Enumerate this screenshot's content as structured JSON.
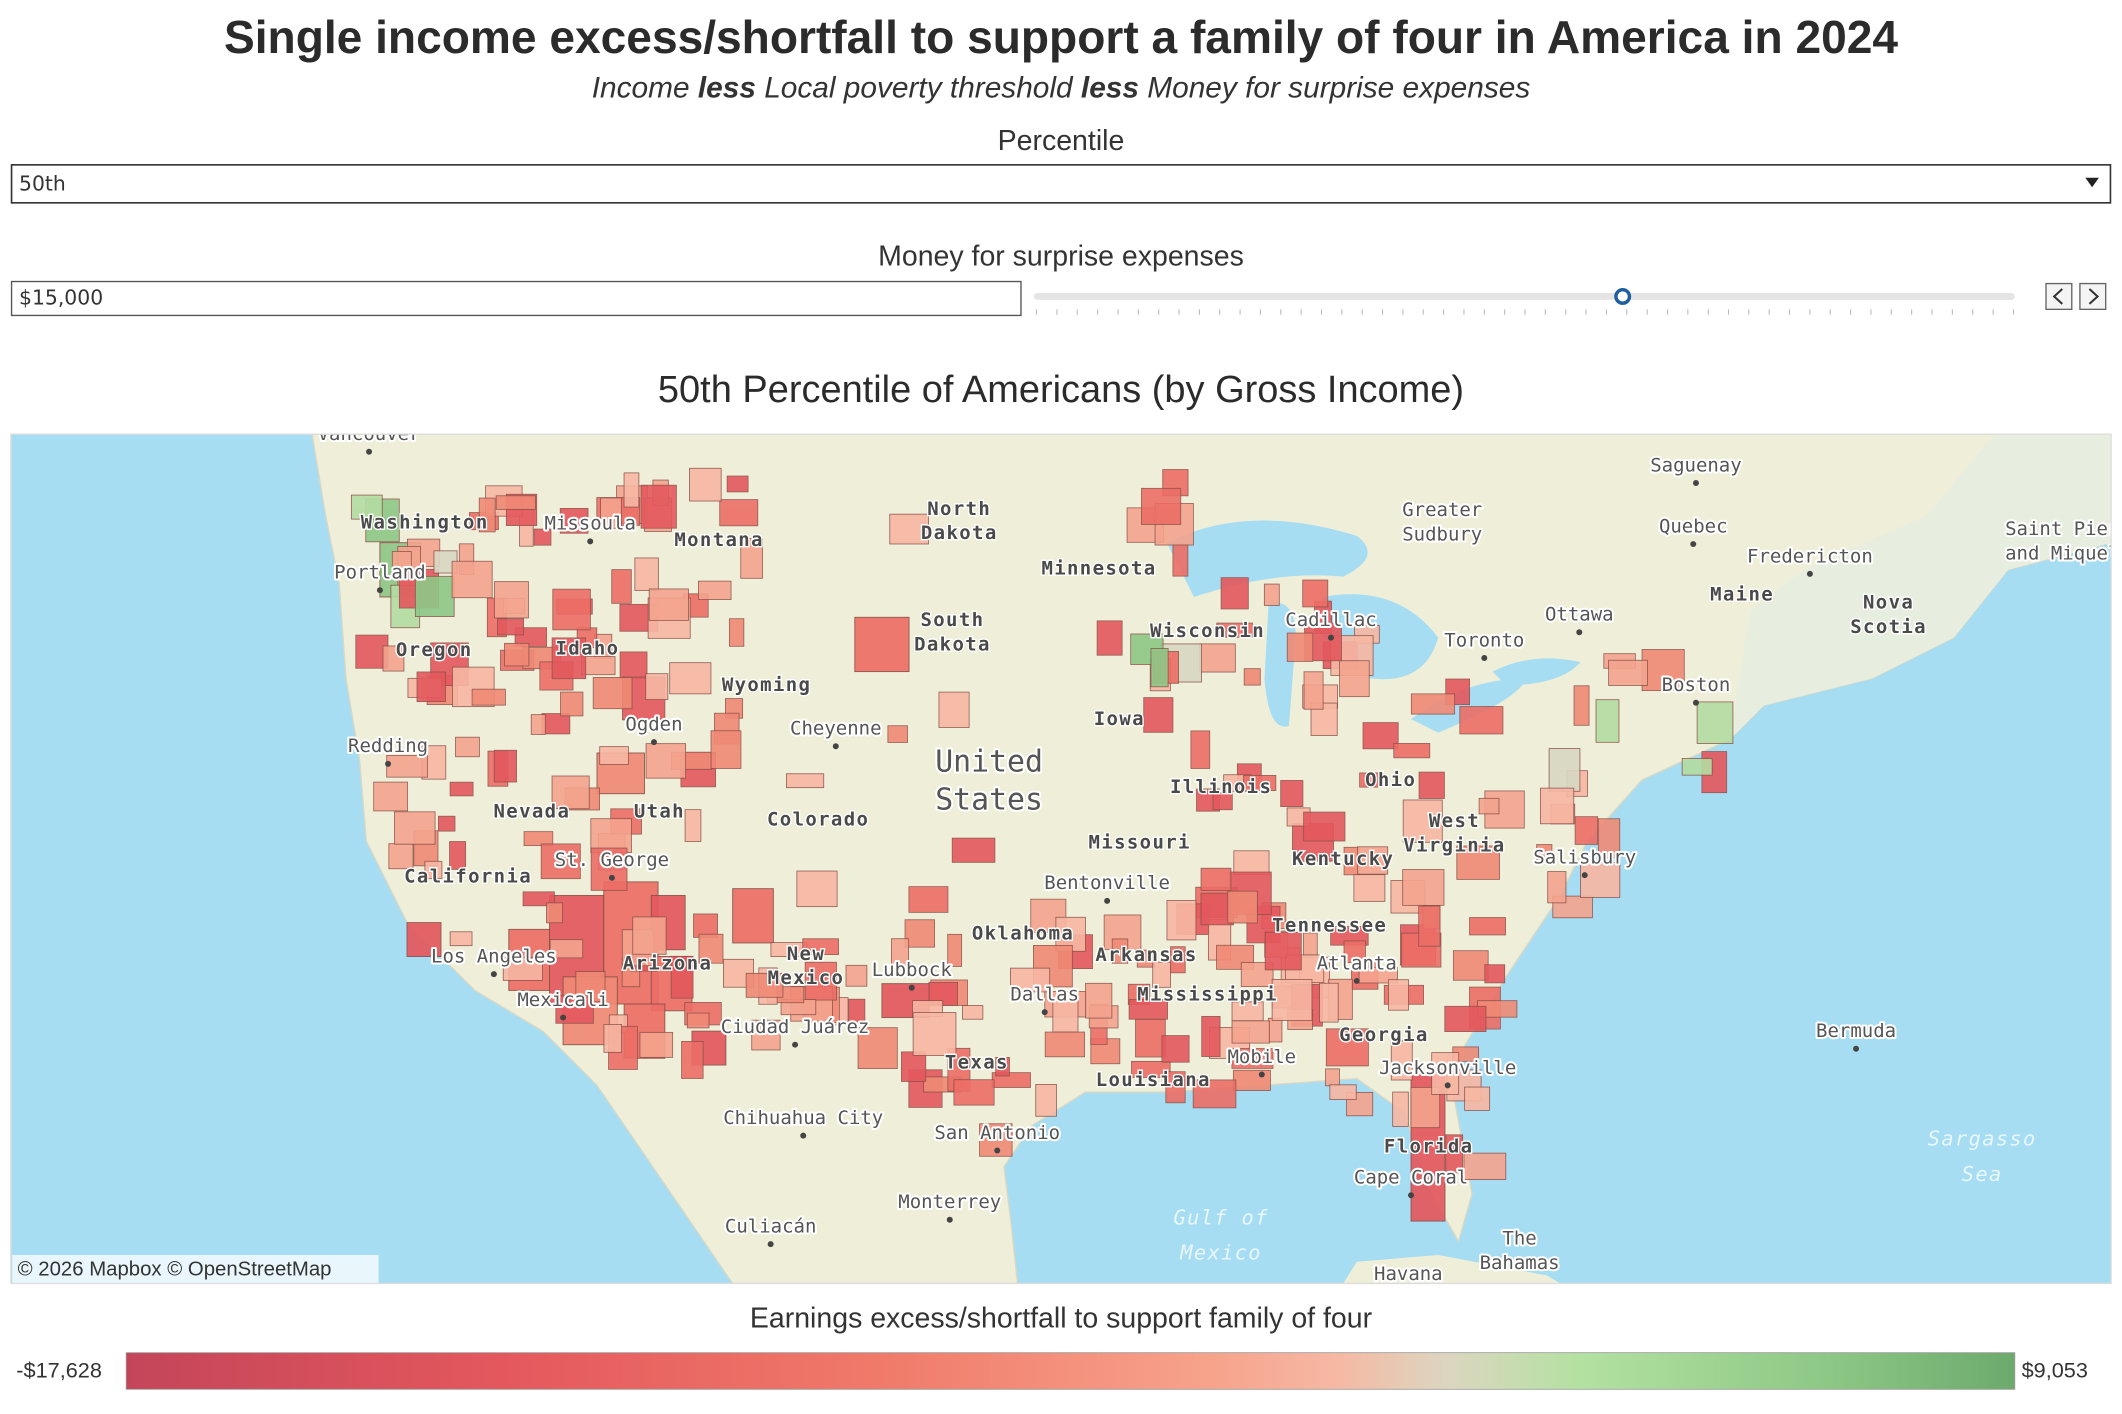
{
  "header": {
    "title": "Single income excess/shortfall to support a family of four in America in 2024",
    "subtitle": [
      "Income",
      "less",
      "Local poverty threshold",
      "less",
      "Money for surprise expenses"
    ]
  },
  "controls": {
    "percentile_label": "Percentile",
    "percentile_value": "50th",
    "money_label": "Money for surprise expenses",
    "money_value": "$15,000"
  },
  "map": {
    "title": "50th Percentile of Americans (by Gross Income)",
    "labels": [
      [
        "Vancouver"
      ],
      [
        "Washington"
      ],
      [
        "Missoula"
      ],
      [
        "Montana"
      ],
      [
        "North",
        "Dakota"
      ],
      [
        "Saguenay"
      ],
      [
        "Greater",
        "Sudbury"
      ],
      [
        "Quebec"
      ],
      [
        "Saint Pier",
        "and Miquel"
      ],
      [
        "Fredericton"
      ],
      [
        "Portland"
      ],
      [
        "Minnesota"
      ],
      [
        "Maine"
      ],
      [
        "Nova",
        "Scotia"
      ],
      [
        "Ottawa"
      ],
      [
        "South",
        "Dakota"
      ],
      [
        "Cadillac"
      ],
      [
        "Wisconsin"
      ],
      [
        "Toronto"
      ],
      [
        "Oregon"
      ],
      [
        "Idaho"
      ],
      [
        "Wyoming"
      ],
      [
        "Boston"
      ],
      [
        "Iowa"
      ],
      [
        "Ogden"
      ],
      [
        "Cheyenne"
      ],
      [
        "Redding"
      ],
      [
        "United",
        "States"
      ],
      [
        "Illinois"
      ],
      [
        "Ohio"
      ],
      [
        "Nevada"
      ],
      [
        "Utah"
      ],
      [
        "Colorado"
      ],
      [
        "West",
        "Virginia"
      ],
      [
        "Salisbury"
      ],
      [
        "St. George"
      ],
      [
        "Kentucky"
      ],
      [
        "California"
      ],
      [
        "Missouri"
      ],
      [
        "Bentonville"
      ],
      [
        "Tennessee"
      ],
      [
        "Oklahoma"
      ],
      [
        "Arkansas"
      ],
      [
        "Los Angeles"
      ],
      [
        "Arizona"
      ],
      [
        "New",
        "Mexico"
      ],
      [
        "Lubbock"
      ],
      [
        "Atlanta"
      ],
      [
        "Mexicali"
      ],
      [
        "Mississippi"
      ],
      [
        "Dallas"
      ],
      [
        "Ciudad Juárez"
      ],
      [
        "Georgia"
      ],
      [
        "Bermuda"
      ],
      [
        "Texas"
      ],
      [
        "Mobile"
      ],
      [
        "Jacksonville"
      ],
      [
        "Louisiana"
      ],
      [
        "Chihuahua City"
      ],
      [
        "San Antonio"
      ],
      [
        "Sargasso",
        "Sea"
      ],
      [
        "Florida"
      ],
      [
        "Cape Coral"
      ],
      [
        "Monterrey"
      ],
      [
        "Gulf of",
        "Mexico"
      ],
      [
        "Culiacán"
      ],
      [
        "The",
        "Bahamas"
      ],
      [
        "Havana"
      ]
    ],
    "attribution": "© 2026 Mapbox © OpenStreetMap"
  },
  "legend": {
    "title": "Earnings excess/shortfall to support family of four",
    "min_label": "-$17,628",
    "max_label": "$9,053"
  }
}
